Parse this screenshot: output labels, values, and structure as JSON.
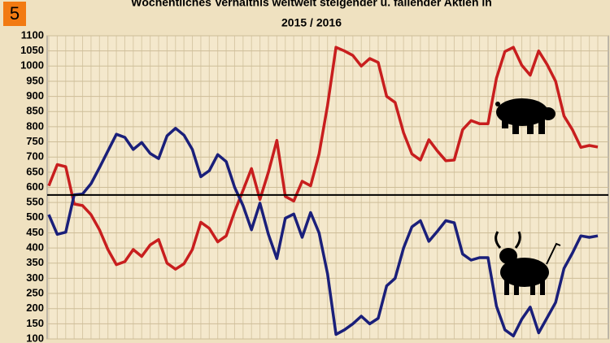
{
  "chart_data": {
    "type": "line",
    "title": "Wöchentliches Verhältnis weltweit steigender u. fallender Aktien in",
    "subtitle": "2015 / 2016",
    "badge": "5",
    "categories": [
      null,
      null,
      null,
      null,
      null,
      null,
      null,
      null,
      null,
      null,
      null,
      null,
      null,
      null,
      null,
      null,
      null,
      null,
      null,
      null,
      null,
      null,
      null,
      null,
      null,
      null,
      null,
      null,
      null,
      null,
      null,
      null,
      null,
      null,
      null,
      null,
      null,
      null,
      null,
      null,
      null,
      null,
      null,
      null,
      null,
      null,
      null,
      null,
      null,
      null,
      null,
      null,
      null,
      null,
      null,
      null,
      null,
      null,
      null,
      null,
      null,
      null,
      null,
      null,
      null,
      null
    ],
    "series": [
      {
        "color": "#c81e1e",
        "values": [
          605,
          675,
          668,
          545,
          540,
          510,
          460,
          395,
          345,
          355,
          395,
          372,
          410,
          428,
          350,
          330,
          348,
          395,
          485,
          465,
          420,
          440,
          520,
          590,
          662,
          560,
          650,
          755,
          570,
          555,
          620,
          605,
          710,
          870,
          1062,
          1050,
          1035,
          1000,
          1025,
          1012,
          900,
          880,
          780,
          710,
          690,
          757,
          720,
          688,
          690,
          790,
          820,
          810,
          810,
          960,
          1048,
          1062,
          1003,
          970,
          1050,
          1005,
          950,
          835,
          790,
          732,
          738,
          733
        ]
      },
      {
        "color": "#1a1f7a",
        "values": [
          510,
          445,
          452,
          575,
          578,
          612,
          665,
          720,
          775,
          765,
          725,
          748,
          712,
          695,
          770,
          795,
          772,
          725,
          635,
          655,
          708,
          685,
          600,
          540,
          460,
          548,
          445,
          365,
          498,
          512,
          435,
          517,
          450,
          315,
          115,
          130,
          150,
          175,
          150,
          168,
          275,
          300,
          400,
          470,
          490,
          422,
          455,
          490,
          483,
          380,
          360,
          368,
          368,
          208,
          130,
          110,
          165,
          205,
          120,
          170,
          220,
          333,
          383,
          440,
          435,
          440
        ]
      }
    ],
    "hline": 575,
    "ylim": [
      100,
      1100
    ],
    "yticks": [
      100,
      150,
      200,
      250,
      300,
      350,
      400,
      450,
      500,
      550,
      600,
      650,
      700,
      750,
      800,
      850,
      900,
      950,
      1000,
      1050,
      1100
    ],
    "grid": true
  }
}
